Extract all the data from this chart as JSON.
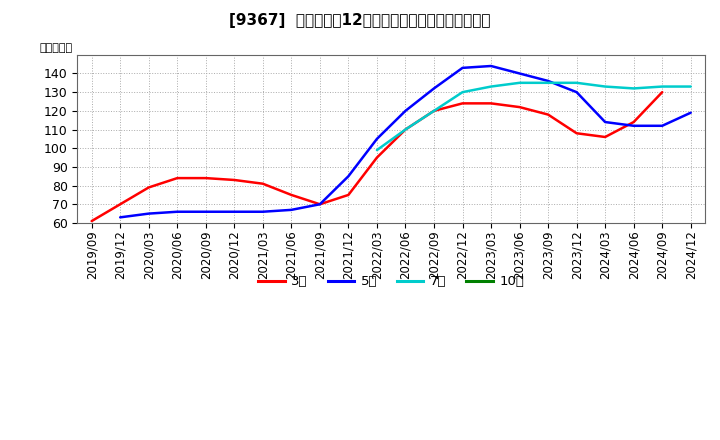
{
  "title": "[9367]  当期純利益12か月移動合計の標準偏差の推移",
  "ylabel": "（百万円）",
  "ylim": [
    60,
    150
  ],
  "yticks": [
    60,
    70,
    80,
    90,
    100,
    110,
    120,
    130,
    140
  ],
  "background_color": "#ffffff",
  "plot_bg_color": "#ffffff",
  "grid_color": "#aaaaaa",
  "series": {
    "3年": {
      "color": "#ff0000",
      "values": [
        61,
        70,
        79,
        84,
        84,
        83,
        81,
        75,
        70,
        75,
        95,
        110,
        120,
        124,
        124,
        122,
        118,
        108,
        106,
        114,
        130,
        null
      ]
    },
    "5年": {
      "color": "#0000ff",
      "values": [
        null,
        63,
        65,
        66,
        66,
        66,
        66,
        67,
        70,
        85,
        105,
        120,
        132,
        143,
        144,
        140,
        136,
        130,
        114,
        112,
        112,
        119
      ]
    },
    "7年": {
      "color": "#00cccc",
      "values": [
        null,
        null,
        null,
        null,
        null,
        null,
        null,
        null,
        null,
        null,
        99,
        110,
        120,
        130,
        133,
        135,
        135,
        135,
        133,
        132,
        133,
        133
      ]
    },
    "10年": {
      "color": "#008000",
      "values": [
        null,
        null,
        null,
        null,
        null,
        null,
        null,
        null,
        null,
        null,
        null,
        null,
        null,
        null,
        null,
        null,
        null,
        null,
        null,
        null,
        null,
        null
      ]
    }
  },
  "series_order": [
    "3年",
    "5年",
    "7年",
    "10年"
  ],
  "legend_labels": [
    "3年",
    "5年",
    "7年",
    "10年"
  ],
  "legend_colors": [
    "#ff0000",
    "#0000ff",
    "#00cccc",
    "#008000"
  ],
  "x_tick_labels": [
    "2019/09",
    "2019/12",
    "2020/03",
    "2020/06",
    "2020/09",
    "2020/12",
    "2021/03",
    "2021/06",
    "2021/09",
    "2021/12",
    "2022/03",
    "2022/06",
    "2022/09",
    "2022/12",
    "2023/03",
    "2023/06",
    "2023/09",
    "2023/12",
    "2024/03",
    "2024/06",
    "2024/09",
    "2024/12"
  ],
  "title_fontsize": 11,
  "axis_fontsize": 8.5,
  "legend_fontsize": 9.5
}
